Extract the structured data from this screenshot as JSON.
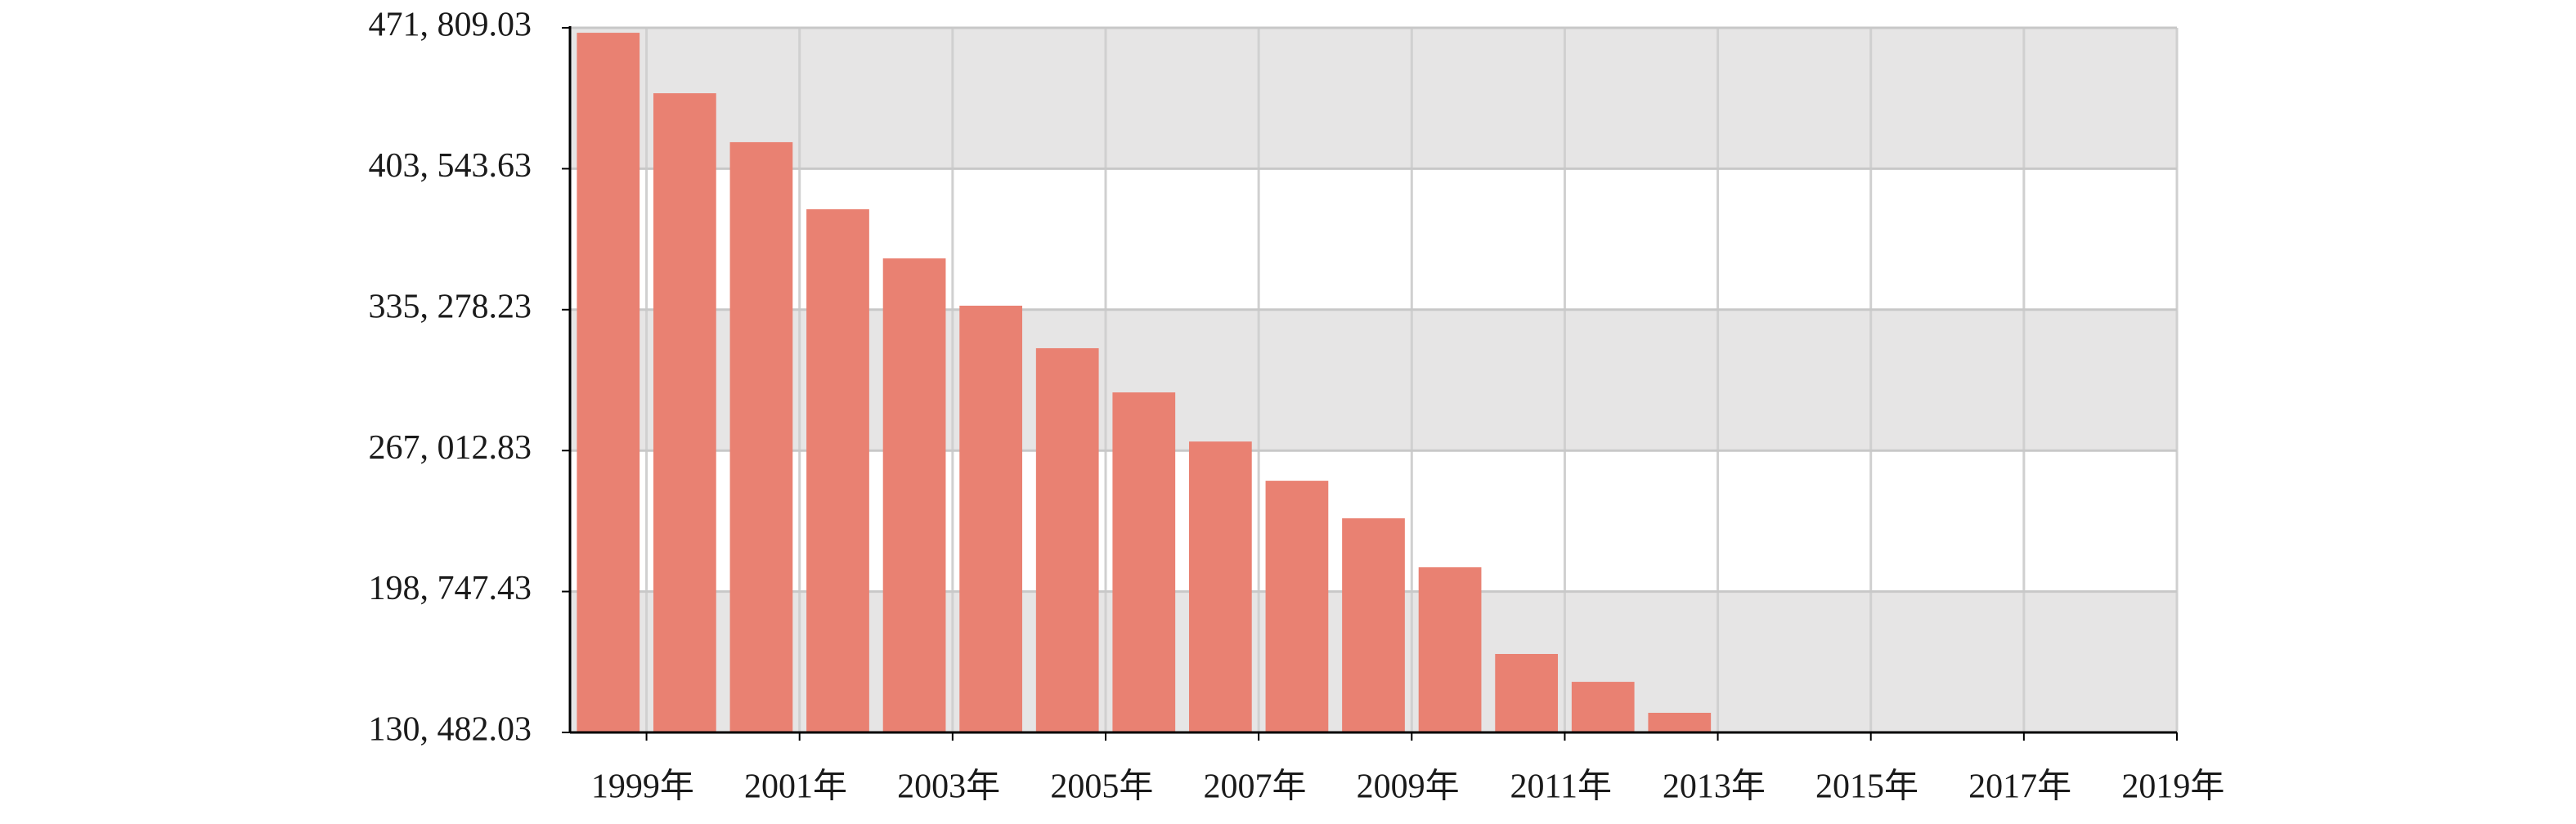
{
  "chart_data": {
    "type": "bar",
    "categories": [
      "1999年",
      null,
      "2001年",
      null,
      "2003年",
      null,
      "2005年",
      null,
      "2007年",
      null,
      "2009年",
      null,
      "2011年",
      null,
      "2013年",
      null,
      "2015年",
      null,
      "2017年",
      null,
      "2019年"
    ],
    "values": [
      469400,
      440100,
      416400,
      383900,
      360100,
      337200,
      316600,
      295200,
      271400,
      252400,
      234200,
      210500,
      168500,
      155000,
      140000,
      null,
      null,
      null,
      null,
      null,
      null
    ],
    "color": "#e98172",
    "ylim": [
      130482.03,
      471809.03
    ],
    "yticks": [
      {
        "value": 130482.03,
        "label": "130, 482.03"
      },
      {
        "value": 198747.43,
        "label": "198, 747.43"
      },
      {
        "value": 267012.83,
        "label": "267, 012.83"
      },
      {
        "value": 335278.23,
        "label": "335, 278.23"
      },
      {
        "value": 403543.63,
        "label": "403, 543.63"
      },
      {
        "value": 471809.03,
        "label": "471, 809.03"
      }
    ],
    "grid": true
  }
}
